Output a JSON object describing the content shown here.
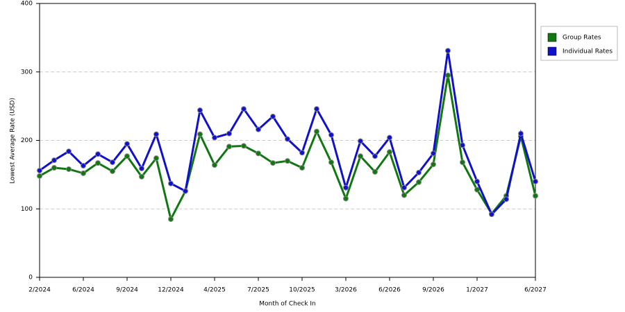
{
  "chart_data": {
    "type": "line",
    "x_label": "Month of Check In",
    "y_label": "Lowest Average Rate (USD)",
    "categories": [
      "2/2024",
      null,
      null,
      "6/2024",
      null,
      null,
      "9/2024",
      null,
      null,
      "12/2024",
      null,
      null,
      "4/2025",
      null,
      null,
      "7/2025",
      null,
      null,
      "10/2025",
      null,
      null,
      "3/2026",
      null,
      null,
      "6/2026",
      null,
      null,
      "9/2026",
      null,
      null,
      "1/2027",
      null,
      null,
      null,
      "6/2027"
    ],
    "series": [
      {
        "name": "Group Rates",
        "color": "#117711",
        "values": [
          148,
          160,
          158,
          152,
          167,
          155,
          177,
          147,
          174,
          85,
          126,
          209,
          164,
          191,
          192,
          181,
          167,
          170,
          160,
          213,
          168,
          115,
          177,
          154,
          183,
          120,
          139,
          165,
          295,
          168,
          128,
          93,
          119,
          206,
          119
        ]
      },
      {
        "name": "Individual Rates",
        "color": "#1111cc",
        "values": [
          156,
          171,
          184,
          163,
          180,
          168,
          195,
          159,
          209,
          137,
          126,
          244,
          204,
          210,
          246,
          216,
          235,
          202,
          182,
          246,
          208,
          131,
          199,
          177,
          204,
          131,
          153,
          181,
          331,
          193,
          140,
          92,
          114,
          210,
          140
        ]
      }
    ],
    "ylim": [
      0,
      400
    ],
    "yticks": [
      0,
      100,
      200,
      300,
      400
    ],
    "grid": true,
    "legend": "right"
  }
}
